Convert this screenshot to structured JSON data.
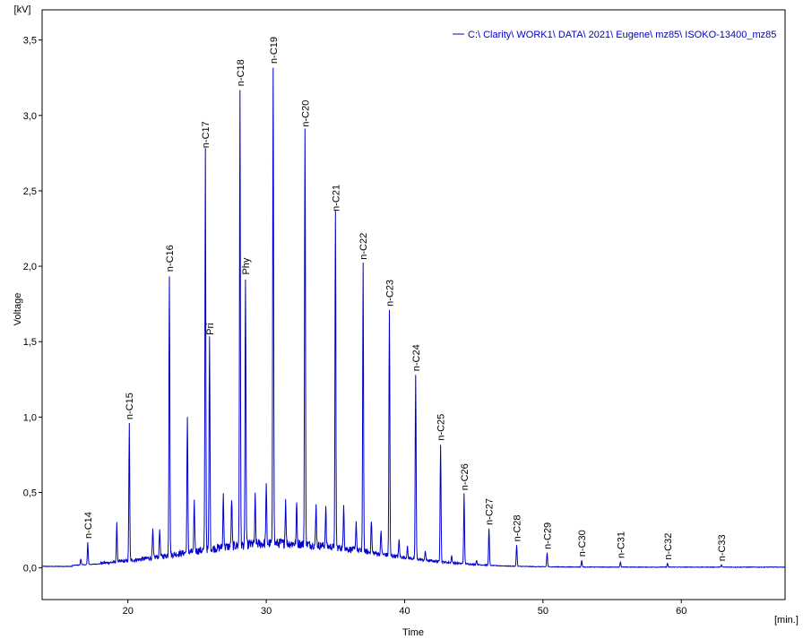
{
  "chart_data": {
    "type": "line",
    "title": "",
    "xlabel": "Time",
    "ylabel": "Voltage",
    "x_unit": "[min.]",
    "y_unit": "[kV]",
    "xlim": [
      13.8,
      67.5
    ],
    "ylim": [
      -0.21,
      3.7
    ],
    "x_ticks": [
      20,
      30,
      40,
      50,
      60
    ],
    "x_tick_labels": [
      "20",
      "30",
      "40",
      "50",
      "60"
    ],
    "y_ticks": [
      0,
      0.5,
      1.0,
      1.5,
      2.0,
      2.5,
      3.0,
      3.5
    ],
    "y_tick_labels": [
      "0,0",
      "0,5",
      "1,0",
      "1,5",
      "2,0",
      "2,5",
      "3,0",
      "3,5"
    ],
    "grid": false,
    "legend_position": "top-right",
    "series": [
      {
        "name": "C:\\ Clarity\\ WORK1\\ DATA\\ 2021\\ Eugene\\ mz85\\ ISOKO-13400_mz85",
        "color": "#0000cc"
      }
    ],
    "labeled_peaks": [
      {
        "label": "n-C14",
        "x": 17.1,
        "y": 0.17
      },
      {
        "label": "n-C15",
        "x": 20.1,
        "y": 0.96
      },
      {
        "label": "n-C16",
        "x": 23.0,
        "y": 1.94
      },
      {
        "label": "n-C17",
        "x": 25.6,
        "y": 2.76
      },
      {
        "label": "Pri",
        "x": 25.9,
        "y": 1.52
      },
      {
        "label": "n-C18",
        "x": 28.1,
        "y": 3.17
      },
      {
        "label": "Phy",
        "x": 28.5,
        "y": 1.92
      },
      {
        "label": "n-C19",
        "x": 30.5,
        "y": 3.32
      },
      {
        "label": "n-C20",
        "x": 32.8,
        "y": 2.9
      },
      {
        "label": "n-C21",
        "x": 35.0,
        "y": 2.34
      },
      {
        "label": "n-C22",
        "x": 37.0,
        "y": 2.02
      },
      {
        "label": "n-C23",
        "x": 38.9,
        "y": 1.71
      },
      {
        "label": "n-C24",
        "x": 40.8,
        "y": 1.28
      },
      {
        "label": "n-C25",
        "x": 42.6,
        "y": 0.82
      },
      {
        "label": "n-C26",
        "x": 44.3,
        "y": 0.49
      },
      {
        "label": "n-C27",
        "x": 46.1,
        "y": 0.26
      },
      {
        "label": "n-C28",
        "x": 48.1,
        "y": 0.15
      },
      {
        "label": "n-C29",
        "x": 50.3,
        "y": 0.1
      },
      {
        "label": "n-C30",
        "x": 52.8,
        "y": 0.05
      },
      {
        "label": "n-C31",
        "x": 55.6,
        "y": 0.04
      },
      {
        "label": "n-C32",
        "x": 59.0,
        "y": 0.03
      },
      {
        "label": "n-C33",
        "x": 62.9,
        "y": 0.02
      }
    ],
    "unlabeled_peaks": [
      {
        "x": 16.6,
        "y": 0.06
      },
      {
        "x": 19.2,
        "y": 0.29
      },
      {
        "x": 21.8,
        "y": 0.24
      },
      {
        "x": 22.3,
        "y": 0.25
      },
      {
        "x": 24.3,
        "y": 0.98
      },
      {
        "x": 24.8,
        "y": 0.42
      },
      {
        "x": 26.9,
        "y": 0.48
      },
      {
        "x": 27.5,
        "y": 0.45
      },
      {
        "x": 29.2,
        "y": 0.46
      },
      {
        "x": 30.0,
        "y": 0.52
      },
      {
        "x": 31.4,
        "y": 0.44
      },
      {
        "x": 32.2,
        "y": 0.42
      },
      {
        "x": 33.6,
        "y": 0.4
      },
      {
        "x": 34.3,
        "y": 0.39
      },
      {
        "x": 35.6,
        "y": 0.43
      },
      {
        "x": 36.5,
        "y": 0.3
      },
      {
        "x": 37.6,
        "y": 0.31
      },
      {
        "x": 38.3,
        "y": 0.24
      },
      {
        "x": 39.6,
        "y": 0.18
      },
      {
        "x": 40.2,
        "y": 0.14
      },
      {
        "x": 41.5,
        "y": 0.11
      },
      {
        "x": 43.4,
        "y": 0.08
      },
      {
        "x": 45.2,
        "y": 0.05
      }
    ]
  }
}
